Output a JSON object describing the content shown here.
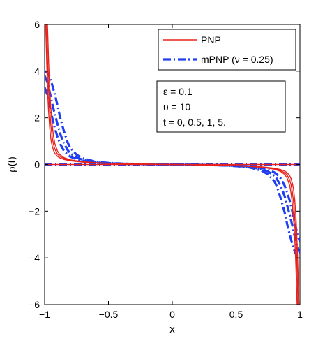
{
  "chart_data": {
    "type": "line",
    "xlabel": "x",
    "ylabel": "ρ(t)",
    "xlim": [
      -1,
      1
    ],
    "ylim": [
      -6,
      6
    ],
    "xticks": [
      -1,
      -0.5,
      0,
      0.5,
      1
    ],
    "xtick_labels": [
      "−1",
      "−0.5",
      "0",
      "0.5",
      "1"
    ],
    "yticks": [
      -6,
      -4,
      -2,
      0,
      2,
      4,
      6
    ],
    "ytick_labels": [
      "−6",
      "−4",
      "−2",
      "0",
      "2",
      "4",
      "6"
    ],
    "grid": false,
    "legend": {
      "placement": "top-right",
      "entries": [
        {
          "label": "PNP",
          "color": "#e8221a",
          "style": "solid"
        },
        {
          "label": "mPNP (ν = 0.25)",
          "color": "#1f3ff0",
          "style": "dash-dot"
        }
      ]
    },
    "annotation": {
      "lines": [
        "ε = 0.1",
        "υ = 10",
        "t = 0, 0.5, 1, 5."
      ]
    },
    "series": [
      {
        "family": "PNP",
        "t": 0,
        "color": "#e8221a",
        "style": "solid",
        "x": [
          -1,
          -0.995,
          -0.99,
          -0.985,
          -0.98,
          -0.97,
          -0.96,
          -0.95,
          -0.94,
          -0.93,
          -0.92,
          -0.9,
          -0.88,
          -0.85,
          -0.8,
          -0.7,
          -0.6,
          -0.5,
          -0.4,
          -0.2,
          0,
          0.2,
          0.4,
          0.5,
          0.6,
          0.7,
          0.8,
          0.85,
          0.88,
          0.9,
          0.92,
          0.93,
          0.94,
          0.95,
          0.96,
          0.97,
          0.98,
          0.985,
          0.99,
          0.995,
          1
        ],
        "y": [
          0,
          0,
          0,
          0,
          0,
          0,
          0,
          0,
          0,
          0,
          0,
          0,
          0,
          0,
          0,
          0,
          0,
          0,
          0,
          0,
          0,
          0,
          0,
          0,
          0,
          0,
          0,
          0,
          0,
          0,
          0,
          0,
          0,
          0,
          0,
          0,
          0,
          0,
          0,
          0,
          0
        ]
      },
      {
        "family": "PNP",
        "t": 0.5,
        "color": "#e8221a",
        "style": "solid",
        "x": [
          -0.992,
          -0.985,
          -0.98,
          -0.975,
          -0.97,
          -0.96,
          -0.95,
          -0.94,
          -0.93,
          -0.92,
          -0.9,
          -0.88,
          -0.85,
          -0.8,
          -0.7,
          -0.6,
          -0.5,
          -0.4,
          -0.2,
          0,
          0.2,
          0.4,
          0.5,
          0.6,
          0.7,
          0.8,
          0.85,
          0.88,
          0.9,
          0.92,
          0.93,
          0.94,
          0.95,
          0.96,
          0.97,
          0.975,
          0.98,
          0.985,
          0.992
        ],
        "y": [
          6,
          4.6,
          3.7,
          2.95,
          2.35,
          1.55,
          1.05,
          0.78,
          0.6,
          0.48,
          0.35,
          0.28,
          0.22,
          0.16,
          0.1,
          0.07,
          0.05,
          0.035,
          0.015,
          0,
          -0.015,
          -0.035,
          -0.05,
          -0.07,
          -0.1,
          -0.16,
          -0.22,
          -0.28,
          -0.35,
          -0.48,
          -0.6,
          -0.78,
          -1.05,
          -1.55,
          -2.35,
          -2.95,
          -3.7,
          -4.6,
          -6
        ]
      },
      {
        "family": "PNP",
        "t": 1,
        "color": "#e8221a",
        "style": "solid",
        "x": [
          -0.985,
          -0.98,
          -0.975,
          -0.97,
          -0.965,
          -0.96,
          -0.95,
          -0.94,
          -0.93,
          -0.92,
          -0.9,
          -0.88,
          -0.85,
          -0.8,
          -0.7,
          -0.6,
          -0.5,
          -0.4,
          -0.2,
          0,
          0.2,
          0.4,
          0.5,
          0.6,
          0.7,
          0.8,
          0.85,
          0.88,
          0.9,
          0.92,
          0.93,
          0.94,
          0.95,
          0.96,
          0.965,
          0.97,
          0.975,
          0.98,
          0.985
        ],
        "y": [
          6,
          5.0,
          4.1,
          3.35,
          2.75,
          2.3,
          1.6,
          1.15,
          0.85,
          0.66,
          0.45,
          0.35,
          0.26,
          0.18,
          0.11,
          0.075,
          0.05,
          0.035,
          0.015,
          0,
          -0.015,
          -0.035,
          -0.05,
          -0.075,
          -0.11,
          -0.18,
          -0.26,
          -0.35,
          -0.45,
          -0.66,
          -0.85,
          -1.15,
          -1.6,
          -2.3,
          -2.75,
          -3.35,
          -4.1,
          -5.0,
          -6
        ]
      },
      {
        "family": "PNP",
        "t": 5,
        "color": "#e8221a",
        "style": "solid",
        "x": [
          -0.978,
          -0.975,
          -0.97,
          -0.965,
          -0.96,
          -0.955,
          -0.95,
          -0.94,
          -0.93,
          -0.92,
          -0.9,
          -0.88,
          -0.85,
          -0.8,
          -0.7,
          -0.6,
          -0.5,
          -0.4,
          -0.2,
          0,
          0.2,
          0.4,
          0.5,
          0.6,
          0.7,
          0.8,
          0.85,
          0.88,
          0.9,
          0.92,
          0.93,
          0.94,
          0.95,
          0.955,
          0.96,
          0.965,
          0.97,
          0.975,
          0.978
        ],
        "y": [
          6,
          5.5,
          4.6,
          3.85,
          3.2,
          2.7,
          2.3,
          1.65,
          1.2,
          0.9,
          0.58,
          0.42,
          0.3,
          0.2,
          0.12,
          0.08,
          0.055,
          0.035,
          0.015,
          0,
          -0.015,
          -0.035,
          -0.055,
          -0.08,
          -0.12,
          -0.2,
          -0.3,
          -0.42,
          -0.58,
          -0.9,
          -1.2,
          -1.65,
          -2.3,
          -2.7,
          -3.2,
          -3.85,
          -4.6,
          -5.5,
          -6
        ]
      },
      {
        "family": "mPNP",
        "t": 0,
        "color": "#1f3ff0",
        "style": "dash-dot",
        "x": [
          -1,
          -0.8,
          -0.6,
          -0.4,
          -0.2,
          0,
          0.2,
          0.4,
          0.6,
          0.8,
          1
        ],
        "y": [
          0,
          0,
          0,
          0,
          0,
          0,
          0,
          0,
          0,
          0,
          0
        ]
      },
      {
        "family": "mPNP",
        "t": 0.5,
        "color": "#1f3ff0",
        "style": "dash-dot",
        "x": [
          -1,
          -0.98,
          -0.96,
          -0.94,
          -0.92,
          -0.9,
          -0.88,
          -0.85,
          -0.82,
          -0.8,
          -0.75,
          -0.7,
          -0.6,
          -0.5,
          -0.4,
          -0.2,
          0,
          0.2,
          0.4,
          0.5,
          0.6,
          0.7,
          0.75,
          0.8,
          0.82,
          0.85,
          0.88,
          0.9,
          0.92,
          0.94,
          0.96,
          0.98,
          1
        ],
        "y": [
          3.3,
          3.0,
          2.5,
          2.0,
          1.55,
          1.2,
          0.9,
          0.6,
          0.42,
          0.34,
          0.22,
          0.15,
          0.08,
          0.05,
          0.03,
          0.012,
          0,
          -0.012,
          -0.03,
          -0.05,
          -0.08,
          -0.15,
          -0.22,
          -0.34,
          -0.42,
          -0.6,
          -0.9,
          -1.2,
          -1.55,
          -2.0,
          -2.5,
          -3.0,
          -3.3
        ]
      },
      {
        "family": "mPNP",
        "t": 1,
        "color": "#1f3ff0",
        "style": "dash-dot",
        "x": [
          -1,
          -0.98,
          -0.96,
          -0.94,
          -0.92,
          -0.9,
          -0.88,
          -0.85,
          -0.82,
          -0.8,
          -0.75,
          -0.7,
          -0.6,
          -0.5,
          -0.4,
          -0.2,
          0,
          0.2,
          0.4,
          0.5,
          0.6,
          0.7,
          0.75,
          0.8,
          0.82,
          0.85,
          0.88,
          0.9,
          0.92,
          0.94,
          0.96,
          0.98,
          1
        ],
        "y": [
          3.8,
          3.55,
          3.1,
          2.6,
          2.15,
          1.75,
          1.35,
          0.92,
          0.62,
          0.48,
          0.3,
          0.2,
          0.1,
          0.06,
          0.035,
          0.014,
          0,
          -0.014,
          -0.035,
          -0.06,
          -0.1,
          -0.2,
          -0.3,
          -0.48,
          -0.62,
          -0.92,
          -1.35,
          -1.75,
          -2.15,
          -2.6,
          -3.1,
          -3.55,
          -3.8
        ]
      },
      {
        "family": "mPNP",
        "t": 5,
        "color": "#1f3ff0",
        "style": "dash-dot",
        "x": [
          -1,
          -0.98,
          -0.96,
          -0.94,
          -0.92,
          -0.9,
          -0.88,
          -0.85,
          -0.82,
          -0.8,
          -0.75,
          -0.7,
          -0.6,
          -0.5,
          -0.4,
          -0.2,
          0,
          0.2,
          0.4,
          0.5,
          0.6,
          0.7,
          0.75,
          0.8,
          0.82,
          0.85,
          0.88,
          0.9,
          0.92,
          0.94,
          0.96,
          0.98,
          1
        ],
        "y": [
          4.0,
          3.95,
          3.75,
          3.4,
          3.0,
          2.55,
          2.05,
          1.45,
          0.95,
          0.72,
          0.42,
          0.26,
          0.12,
          0.07,
          0.04,
          0.015,
          0,
          -0.015,
          -0.04,
          -0.07,
          -0.12,
          -0.26,
          -0.42,
          -0.72,
          -0.95,
          -1.45,
          -2.05,
          -2.55,
          -3.0,
          -3.4,
          -3.75,
          -3.95,
          -4.0
        ]
      }
    ]
  }
}
